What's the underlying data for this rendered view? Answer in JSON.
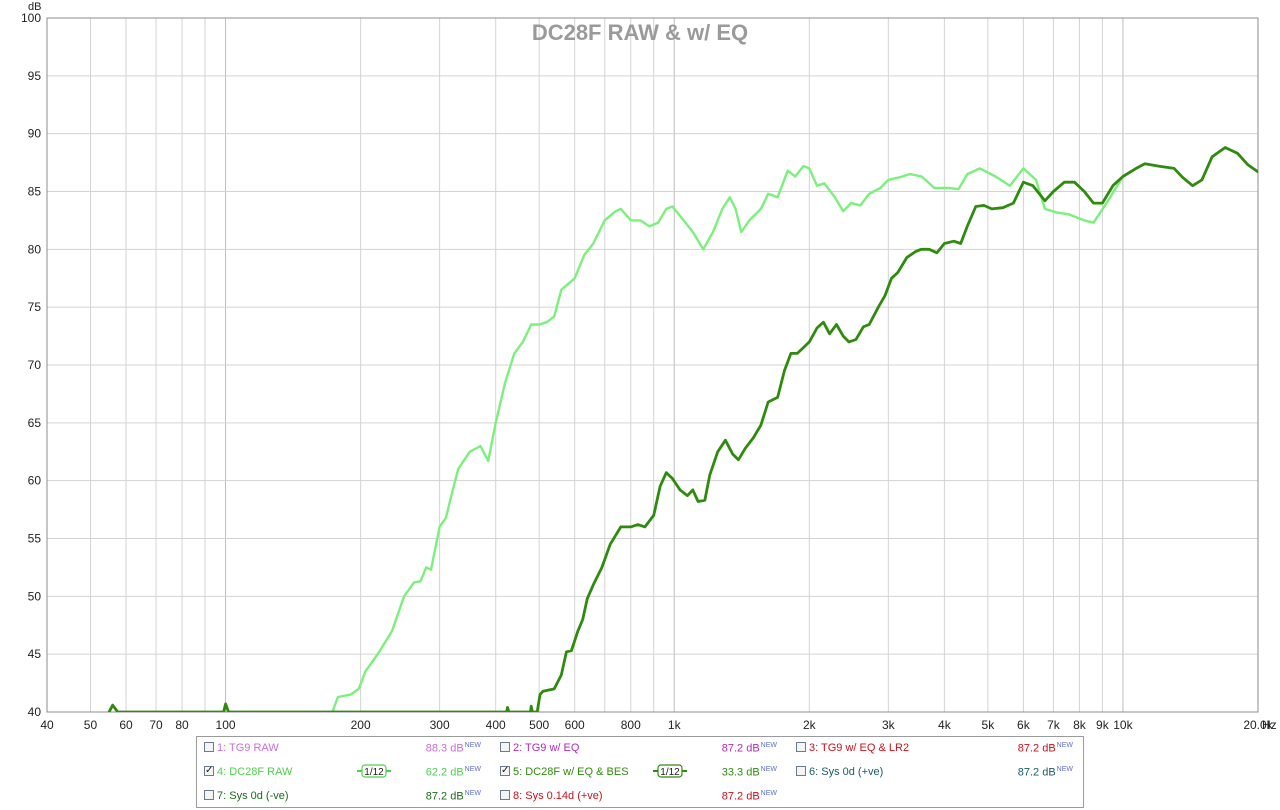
{
  "chart_data": {
    "type": "line",
    "title": "DC28F RAW & w/ EQ",
    "ylabel": "dB",
    "xunit": "Hz",
    "xscale": "log",
    "xlim": [
      40,
      20000
    ],
    "ylim": [
      40,
      100
    ],
    "grid": true,
    "x_ticks": [
      {
        "v": 40,
        "label": "40"
      },
      {
        "v": 50,
        "label": "50"
      },
      {
        "v": 60,
        "label": "60"
      },
      {
        "v": 70,
        "label": "70"
      },
      {
        "v": 80,
        "label": "80"
      },
      {
        "v": 100,
        "label": "100"
      },
      {
        "v": 200,
        "label": "200"
      },
      {
        "v": 300,
        "label": "300"
      },
      {
        "v": 400,
        "label": "400"
      },
      {
        "v": 500,
        "label": "500"
      },
      {
        "v": 600,
        "label": "600"
      },
      {
        "v": 800,
        "label": "800"
      },
      {
        "v": 1000,
        "label": "1k"
      },
      {
        "v": 2000,
        "label": "2k"
      },
      {
        "v": 3000,
        "label": "3k"
      },
      {
        "v": 4000,
        "label": "4k"
      },
      {
        "v": 5000,
        "label": "5k"
      },
      {
        "v": 6000,
        "label": "6k"
      },
      {
        "v": 7000,
        "label": "7k"
      },
      {
        "v": 8000,
        "label": "8k"
      },
      {
        "v": 9000,
        "label": "9k"
      },
      {
        "v": 10000,
        "label": "10k"
      },
      {
        "v": 20000,
        "label": "20.0k"
      }
    ],
    "y_ticks": [
      40,
      45,
      50,
      55,
      60,
      65,
      70,
      75,
      80,
      85,
      90,
      95,
      100
    ],
    "series": [
      {
        "name": "4: DC28F RAW",
        "color": "#7cf07c",
        "points": [
          [
            173,
            40
          ],
          [
            178,
            41.3
          ],
          [
            190,
            41.5
          ],
          [
            198,
            42
          ],
          [
            205,
            43.5
          ],
          [
            220,
            45.2
          ],
          [
            235,
            47
          ],
          [
            250,
            50
          ],
          [
            263,
            51.2
          ],
          [
            272,
            51.3
          ],
          [
            280,
            52.5
          ],
          [
            287,
            52.3
          ],
          [
            300,
            56
          ],
          [
            310,
            56.8
          ],
          [
            320,
            59
          ],
          [
            330,
            61
          ],
          [
            350,
            62.5
          ],
          [
            370,
            63
          ],
          [
            385,
            61.7
          ],
          [
            400,
            65
          ],
          [
            420,
            68.5
          ],
          [
            440,
            71
          ],
          [
            460,
            72
          ],
          [
            480,
            73.5
          ],
          [
            500,
            73.5
          ],
          [
            520,
            73.7
          ],
          [
            540,
            74.2
          ],
          [
            560,
            76.5
          ],
          [
            600,
            77.5
          ],
          [
            630,
            79.5
          ],
          [
            660,
            80.5
          ],
          [
            700,
            82.5
          ],
          [
            740,
            83.3
          ],
          [
            760,
            83.5
          ],
          [
            800,
            82.5
          ],
          [
            840,
            82.5
          ],
          [
            880,
            82
          ],
          [
            920,
            82.3
          ],
          [
            960,
            83.5
          ],
          [
            990,
            83.7
          ],
          [
            1050,
            82.5
          ],
          [
            1100,
            81.5
          ],
          [
            1160,
            80
          ],
          [
            1220,
            81.5
          ],
          [
            1280,
            83.5
          ],
          [
            1330,
            84.5
          ],
          [
            1370,
            83.5
          ],
          [
            1410,
            81.5
          ],
          [
            1470,
            82.5
          ],
          [
            1560,
            83.5
          ],
          [
            1620,
            84.8
          ],
          [
            1700,
            84.5
          ],
          [
            1790,
            86.8
          ],
          [
            1860,
            86.3
          ],
          [
            1940,
            87.2
          ],
          [
            2000,
            87
          ],
          [
            2080,
            85.5
          ],
          [
            2160,
            85.7
          ],
          [
            2280,
            84.5
          ],
          [
            2380,
            83.3
          ],
          [
            2480,
            84
          ],
          [
            2600,
            83.8
          ],
          [
            2720,
            84.8
          ],
          [
            2880,
            85.3
          ],
          [
            3000,
            86
          ],
          [
            3160,
            86.2
          ],
          [
            3350,
            86.5
          ],
          [
            3560,
            86.3
          ],
          [
            3800,
            85.3
          ],
          [
            4100,
            85.3
          ],
          [
            4300,
            85.2
          ],
          [
            4500,
            86.5
          ],
          [
            4800,
            87
          ],
          [
            5200,
            86.3
          ],
          [
            5600,
            85.5
          ],
          [
            6000,
            87
          ],
          [
            6400,
            86
          ],
          [
            6700,
            83.5
          ],
          [
            7100,
            83.2
          ],
          [
            7600,
            83
          ],
          [
            8200,
            82.5
          ],
          [
            8600,
            82.3
          ],
          [
            9300,
            84.3
          ],
          [
            10000,
            86.3
          ],
          [
            10700,
            87
          ],
          [
            11200,
            87.4
          ]
        ]
      },
      {
        "name": "5: DC28F w/ EQ & BES",
        "color": "#2e8b0e",
        "points": [
          [
            55,
            40
          ],
          [
            56,
            40.6
          ],
          [
            57.5,
            40
          ],
          [
            99,
            40
          ],
          [
            100,
            40.7
          ],
          [
            101.5,
            40
          ],
          [
            423,
            40
          ],
          [
            425,
            40.4
          ],
          [
            428,
            40
          ],
          [
            478,
            40
          ],
          [
            480,
            40.5
          ],
          [
            483,
            40
          ],
          [
            495,
            40
          ],
          [
            502,
            41.5
          ],
          [
            510,
            41.8
          ],
          [
            540,
            42
          ],
          [
            560,
            43.2
          ],
          [
            575,
            45.2
          ],
          [
            590,
            45.3
          ],
          [
            610,
            47
          ],
          [
            625,
            48
          ],
          [
            640,
            49.8
          ],
          [
            660,
            51
          ],
          [
            690,
            52.5
          ],
          [
            720,
            54.5
          ],
          [
            760,
            56
          ],
          [
            800,
            56
          ],
          [
            830,
            56.2
          ],
          [
            860,
            56
          ],
          [
            900,
            57
          ],
          [
            930,
            59.5
          ],
          [
            960,
            60.7
          ],
          [
            990,
            60.2
          ],
          [
            1030,
            59.2
          ],
          [
            1070,
            58.7
          ],
          [
            1100,
            59.2
          ],
          [
            1130,
            58.2
          ],
          [
            1170,
            58.3
          ],
          [
            1200,
            60.5
          ],
          [
            1250,
            62.5
          ],
          [
            1300,
            63.5
          ],
          [
            1350,
            62.3
          ],
          [
            1390,
            61.8
          ],
          [
            1440,
            62.8
          ],
          [
            1500,
            63.7
          ],
          [
            1560,
            64.8
          ],
          [
            1620,
            66.8
          ],
          [
            1700,
            67.2
          ],
          [
            1760,
            69.5
          ],
          [
            1820,
            71
          ],
          [
            1880,
            71
          ],
          [
            1940,
            71.5
          ],
          [
            2000,
            72
          ],
          [
            2080,
            73.2
          ],
          [
            2150,
            73.7
          ],
          [
            2220,
            72.7
          ],
          [
            2300,
            73.5
          ],
          [
            2380,
            72.5
          ],
          [
            2450,
            72
          ],
          [
            2540,
            72.2
          ],
          [
            2640,
            73.3
          ],
          [
            2720,
            73.5
          ],
          [
            2850,
            75
          ],
          [
            2950,
            76
          ],
          [
            3050,
            77.5
          ],
          [
            3150,
            78
          ],
          [
            3300,
            79.3
          ],
          [
            3450,
            79.8
          ],
          [
            3550,
            80
          ],
          [
            3700,
            80
          ],
          [
            3850,
            79.7
          ],
          [
            4000,
            80.5
          ],
          [
            4200,
            80.7
          ],
          [
            4350,
            80.5
          ],
          [
            4500,
            82
          ],
          [
            4700,
            83.7
          ],
          [
            4900,
            83.8
          ],
          [
            5100,
            83.5
          ],
          [
            5400,
            83.6
          ],
          [
            5700,
            84
          ],
          [
            6000,
            85.8
          ],
          [
            6300,
            85.5
          ],
          [
            6700,
            84.2
          ],
          [
            7000,
            85
          ],
          [
            7400,
            85.8
          ],
          [
            7800,
            85.8
          ],
          [
            8200,
            85
          ],
          [
            8600,
            84
          ],
          [
            9000,
            84
          ],
          [
            9500,
            85.5
          ],
          [
            10000,
            86.3
          ],
          [
            10700,
            87
          ],
          [
            11200,
            87.4
          ],
          [
            12000,
            87.2
          ],
          [
            13000,
            87
          ],
          [
            13600,
            86.2
          ],
          [
            14300,
            85.5
          ],
          [
            15000,
            86
          ],
          [
            15800,
            88
          ],
          [
            16900,
            88.8
          ],
          [
            18000,
            88.3
          ],
          [
            19000,
            87.3
          ],
          [
            20000,
            86.7
          ],
          [
            21000,
            86.3
          ],
          [
            21500,
            86.2
          ],
          [
            22500,
            86.3
          ],
          [
            23000,
            86.2
          ]
        ]
      }
    ]
  },
  "legend": {
    "items": [
      {
        "label": "1: TG9 RAW",
        "value": "88.3 dB",
        "new": "NEW",
        "checked": false,
        "color": "#c86ed8",
        "smoothing": ""
      },
      {
        "label": "2: TG9 w/ EQ",
        "value": "87.2 dB",
        "new": "NEW",
        "checked": false,
        "color": "#b02ab8",
        "smoothing": ""
      },
      {
        "label": "3: TG9 w/ EQ & LR2",
        "value": "87.2 dB",
        "new": "NEW",
        "checked": false,
        "color": "#c8101a",
        "smoothing": ""
      },
      {
        "label": "4: DC28F RAW",
        "value": "62.2 dB",
        "new": "NEW",
        "checked": true,
        "color": "#4fcf4f",
        "smoothing": "1/12"
      },
      {
        "label": "5: DC28F w/ EQ & BES",
        "value": "33.3 dB",
        "new": "NEW",
        "checked": true,
        "color": "#2e8b0e",
        "smoothing": "1/12"
      },
      {
        "label": "6: Sys 0d (+ve)",
        "value": "87.2 dB",
        "new": "NEW",
        "checked": false,
        "color": "#1a5a6a",
        "smoothing": ""
      },
      {
        "label": "7: Sys 0d (-ve)",
        "value": "87.2 dB",
        "new": "NEW",
        "checked": false,
        "color": "#1a6a1a",
        "smoothing": ""
      },
      {
        "label": "8: Sys 0.14d (+ve)",
        "value": "87.2 dB",
        "new": "NEW",
        "checked": false,
        "color": "#c8101a",
        "smoothing": ""
      }
    ]
  }
}
